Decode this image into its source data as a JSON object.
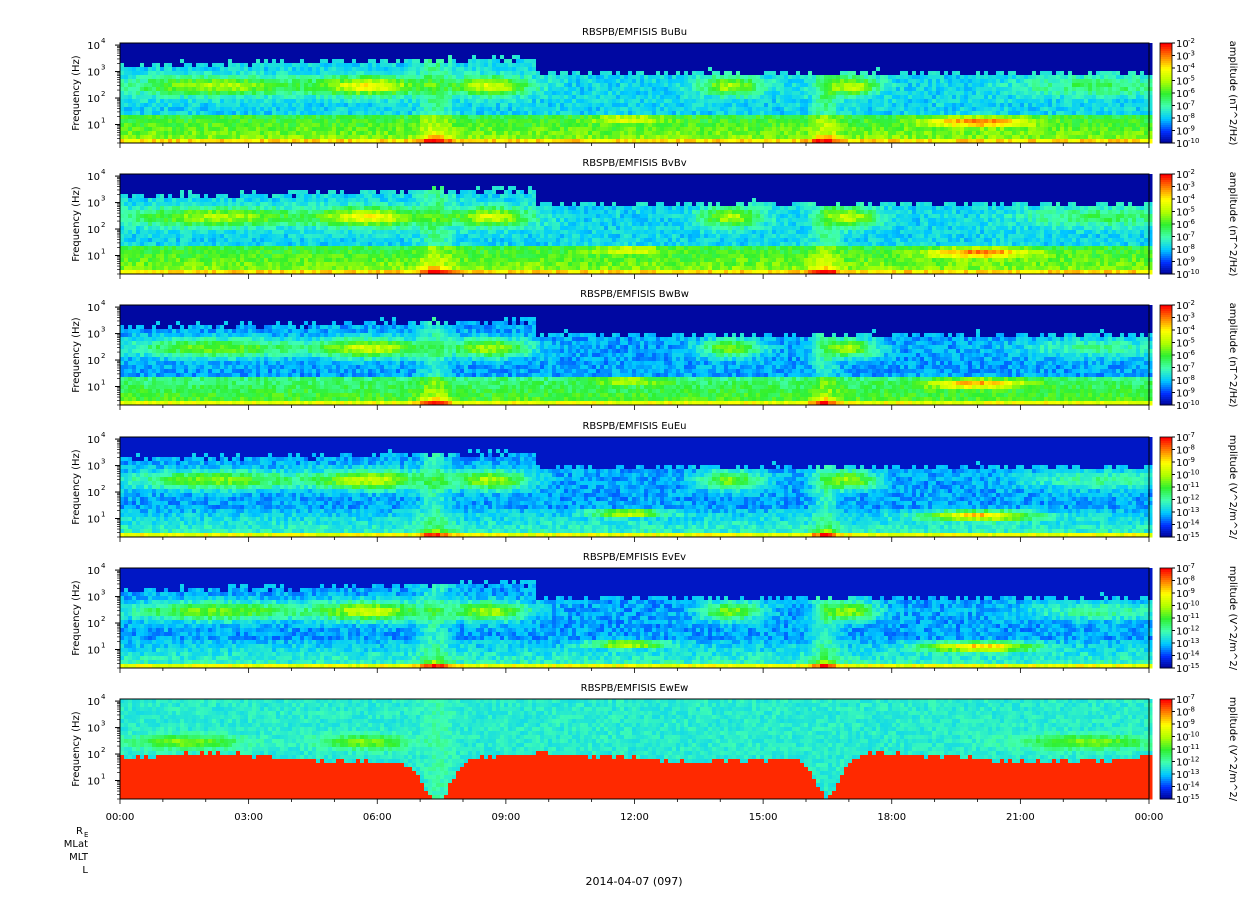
{
  "chart_data": {
    "type": "heatmap",
    "date_label": "2014-04-07 (097)",
    "x_axis": {
      "start": "2014-04-07 00:00",
      "end": "2014-04-08 00:00",
      "ticks": [
        "00:00",
        "03:00",
        "06:00",
        "09:00",
        "12:00",
        "15:00",
        "18:00",
        "21:00",
        "00:00"
      ]
    },
    "ephemeris_labels": [
      "R",
      "MLat",
      "MLT",
      "L"
    ],
    "ephemeris_subscript": "E",
    "y_axis": {
      "label": "Frequency (Hz)",
      "scale": "log",
      "range": [
        2,
        12000
      ],
      "tick_bases": [
        "10",
        "10",
        "10",
        "10"
      ],
      "tick_exponents": [
        "1",
        "2",
        "3",
        "4"
      ]
    },
    "panels": [
      {
        "title": "RBSPB/EMFISIS  BuBu",
        "colorbar_label": "amplitude (nT^2/Hz)",
        "colorbar_range": [
          1e-10,
          0.01
        ],
        "colorbar_exponents": [
          "-2",
          "-3",
          "-4",
          "-5",
          "-6",
          "-7",
          "-8",
          "-9",
          "-10"
        ],
        "kind": "B"
      },
      {
        "title": "RBSPB/EMFISIS  BvBv",
        "colorbar_label": "amplitude (nT^2/Hz)",
        "colorbar_range": [
          1e-10,
          0.01
        ],
        "colorbar_exponents": [
          "-2",
          "-3",
          "-4",
          "-5",
          "-6",
          "-7",
          "-8",
          "-9",
          "-10"
        ],
        "kind": "B"
      },
      {
        "title": "RBSPB/EMFISIS  BwBw",
        "colorbar_label": "amplitude (nT^2/Hz)",
        "colorbar_range": [
          1e-10,
          0.01
        ],
        "colorbar_exponents": [
          "-2",
          "-3",
          "-4",
          "-5",
          "-6",
          "-7",
          "-8",
          "-9",
          "-10"
        ],
        "kind": "Bw"
      },
      {
        "title": "RBSPB/EMFISIS  EuEu",
        "colorbar_label": "mplitude (V^2/m^2/",
        "colorbar_range": [
          1e-15,
          1e-07
        ],
        "colorbar_exponents": [
          "-7",
          "-8",
          "-9",
          "-10",
          "-11",
          "-12",
          "-13",
          "-14",
          "-15"
        ],
        "kind": "E"
      },
      {
        "title": "RBSPB/EMFISIS  EvEv",
        "colorbar_label": "mplitude (V^2/m^2/",
        "colorbar_range": [
          1e-15,
          1e-07
        ],
        "colorbar_exponents": [
          "-7",
          "-8",
          "-9",
          "-10",
          "-11",
          "-12",
          "-13",
          "-14",
          "-15"
        ],
        "kind": "E"
      },
      {
        "title": "RBSPB/EMFISIS  EwEw",
        "colorbar_label": "mplitude (V^2/m^2/",
        "colorbar_range": [
          1e-15,
          1e-07
        ],
        "colorbar_exponents": [
          "-7",
          "-8",
          "-9",
          "-10",
          "-11",
          "-12",
          "-13",
          "-14",
          "-15"
        ],
        "kind": "Ew"
      }
    ],
    "colormap": [
      "#000090",
      "#0030ff",
      "#00c8ff",
      "#40ffb0",
      "#30f030",
      "#b0ff00",
      "#ffff00",
      "#ff8000",
      "#ff0000"
    ]
  }
}
